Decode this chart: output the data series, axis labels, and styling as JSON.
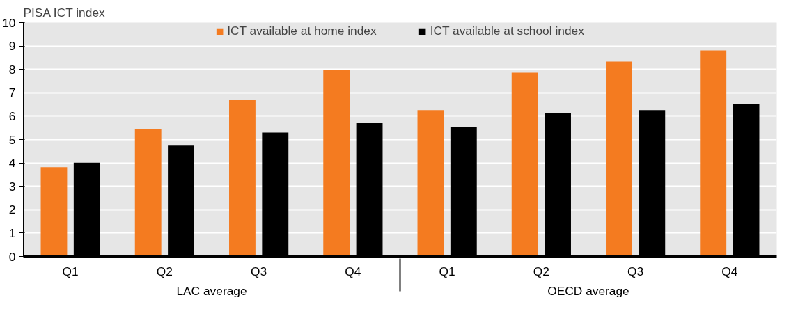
{
  "chart_data": {
    "type": "bar",
    "ylabel": "PISA ICT index",
    "categories": [
      "Q1",
      "Q2",
      "Q3",
      "Q4",
      "Q1",
      "Q2",
      "Q3",
      "Q4"
    ],
    "annotations": [
      "LAC average",
      "OECD average"
    ],
    "series": [
      {
        "name": "ICT available at home index",
        "color": "#f47b20",
        "values": [
          3.82,
          5.43,
          6.68,
          7.98,
          6.26,
          7.86,
          8.33,
          8.81
        ]
      },
      {
        "name": "ICT available at school index",
        "color": "#000000",
        "values": [
          4.01,
          4.74,
          5.3,
          5.73,
          5.52,
          6.12,
          6.26,
          6.51
        ]
      }
    ],
    "ylim": [
      0,
      10
    ],
    "yticks": [
      0,
      1,
      2,
      3,
      4,
      5,
      6,
      7,
      8,
      9,
      10
    ],
    "grid": true,
    "legend": "top"
  }
}
